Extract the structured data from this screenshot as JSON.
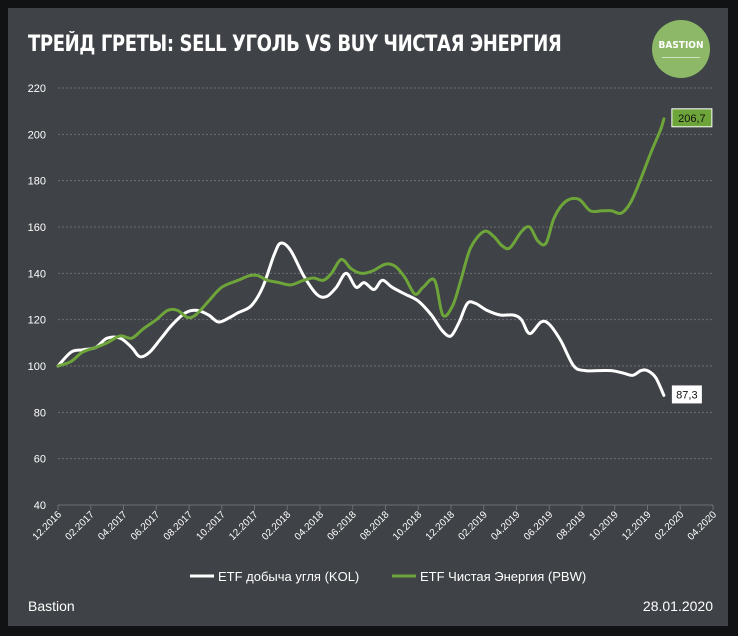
{
  "title": "ТРЕЙД ГРЕТЫ:  SELL УГОЛЬ VS BUY ЧИСТАЯ ЭНЕРГИЯ",
  "logo_text": "BASTION",
  "footer": {
    "source": "Bastion",
    "date": "28.01.2020"
  },
  "colors": {
    "panel": "#3f4246",
    "kol": "#ffffff",
    "pbw": "#6ea53a",
    "grid": "#6c6f73"
  },
  "chart_data": {
    "type": "line",
    "title": "ТРЕЙД ГРЕТЫ:  SELL УГОЛЬ VS BUY ЧИСТАЯ ЭНЕРГИЯ",
    "xlabel": "",
    "ylabel": "",
    "ylim": [
      40,
      220
    ],
    "yticks": [
      40,
      60,
      80,
      100,
      120,
      140,
      160,
      180,
      200,
      220
    ],
    "xlim": [
      0,
      40
    ],
    "xticks": [
      {
        "x": 0,
        "label": "12.2016"
      },
      {
        "x": 2,
        "label": "02.2017"
      },
      {
        "x": 4,
        "label": "04.2017"
      },
      {
        "x": 6,
        "label": "06.2017"
      },
      {
        "x": 8,
        "label": "08.2017"
      },
      {
        "x": 10,
        "label": "10.2017"
      },
      {
        "x": 12,
        "label": "12.2017"
      },
      {
        "x": 14,
        "label": "02.2018"
      },
      {
        "x": 16,
        "label": "04.2018"
      },
      {
        "x": 18,
        "label": "06.2018"
      },
      {
        "x": 20,
        "label": "08.2018"
      },
      {
        "x": 22,
        "label": "10.2018"
      },
      {
        "x": 24,
        "label": "12.2018"
      },
      {
        "x": 26,
        "label": "02.2019"
      },
      {
        "x": 28,
        "label": "04.2019"
      },
      {
        "x": 30,
        "label": "06.2019"
      },
      {
        "x": 32,
        "label": "08.2019"
      },
      {
        "x": 34,
        "label": "10.2019"
      },
      {
        "x": 36,
        "label": "12.2019"
      },
      {
        "x": 38,
        "label": "02.2020"
      },
      {
        "x": 40,
        "label": "04.2020"
      }
    ],
    "grid": true,
    "legend": "bottom-center",
    "series": [
      {
        "name": "ETF добыча угля (KOL)",
        "color": "#ffffff",
        "end_label": "87,3",
        "points": [
          [
            0,
            100
          ],
          [
            0.8,
            106
          ],
          [
            1.5,
            107
          ],
          [
            2.3,
            108
          ],
          [
            3,
            112
          ],
          [
            3.8,
            112
          ],
          [
            4.5,
            108
          ],
          [
            5,
            104
          ],
          [
            5.6,
            106
          ],
          [
            6.3,
            112
          ],
          [
            7,
            118
          ],
          [
            7.8,
            123
          ],
          [
            8.5,
            124
          ],
          [
            9.2,
            122
          ],
          [
            9.8,
            119
          ],
          [
            10.5,
            121
          ],
          [
            11,
            123
          ],
          [
            11.8,
            126
          ],
          [
            12.5,
            134
          ],
          [
            13.2,
            148
          ],
          [
            13.6,
            153
          ],
          [
            14.2,
            150
          ],
          [
            15,
            139
          ],
          [
            15.8,
            131
          ],
          [
            16.4,
            130
          ],
          [
            17,
            134
          ],
          [
            17.6,
            140
          ],
          [
            18.2,
            134
          ],
          [
            18.7,
            136
          ],
          [
            19.3,
            133
          ],
          [
            19.8,
            137
          ],
          [
            20.4,
            134
          ],
          [
            21.2,
            131
          ],
          [
            22,
            128
          ],
          [
            22.8,
            122
          ],
          [
            23.5,
            115
          ],
          [
            24,
            113
          ],
          [
            24.5,
            119
          ],
          [
            25,
            127
          ],
          [
            25.5,
            127
          ],
          [
            26.2,
            124
          ],
          [
            27,
            122
          ],
          [
            27.8,
            122
          ],
          [
            28.3,
            120
          ],
          [
            28.8,
            114
          ],
          [
            29.5,
            119
          ],
          [
            30,
            118
          ],
          [
            30.7,
            111
          ],
          [
            31.5,
            100
          ],
          [
            32.2,
            98
          ],
          [
            33,
            98
          ],
          [
            33.8,
            98
          ],
          [
            34.5,
            97
          ],
          [
            35.1,
            96
          ],
          [
            35.6,
            98
          ],
          [
            36,
            98
          ],
          [
            36.5,
            95
          ],
          [
            37,
            87.3
          ]
        ]
      },
      {
        "name": "ETF Чистая Энергия (PBW)",
        "color": "#6ea53a",
        "end_label": "206,7",
        "points": [
          [
            0,
            100
          ],
          [
            0.8,
            102
          ],
          [
            1.5,
            106
          ],
          [
            2.3,
            108
          ],
          [
            3,
            110
          ],
          [
            3.8,
            113
          ],
          [
            4.5,
            112
          ],
          [
            5.2,
            116
          ],
          [
            6,
            120
          ],
          [
            6.7,
            124
          ],
          [
            7.3,
            124
          ],
          [
            7.9,
            121
          ],
          [
            8.4,
            122
          ],
          [
            9.2,
            128
          ],
          [
            10,
            134
          ],
          [
            11,
            137
          ],
          [
            11.7,
            139
          ],
          [
            12.2,
            139
          ],
          [
            12.8,
            137
          ],
          [
            13.5,
            136
          ],
          [
            14.2,
            135
          ],
          [
            15,
            137
          ],
          [
            15.6,
            138
          ],
          [
            16.2,
            137
          ],
          [
            16.7,
            140
          ],
          [
            17.3,
            146
          ],
          [
            17.9,
            142
          ],
          [
            18.5,
            140
          ],
          [
            19.2,
            141
          ],
          [
            20,
            144
          ],
          [
            20.6,
            143
          ],
          [
            21.2,
            138
          ],
          [
            21.8,
            131
          ],
          [
            22.3,
            134
          ],
          [
            23,
            137
          ],
          [
            23.5,
            122
          ],
          [
            24.1,
            126
          ],
          [
            24.6,
            137
          ],
          [
            25.2,
            151
          ],
          [
            26,
            158
          ],
          [
            26.6,
            156
          ],
          [
            27.1,
            152
          ],
          [
            27.6,
            151
          ],
          [
            28.3,
            158
          ],
          [
            28.8,
            160
          ],
          [
            29.3,
            154
          ],
          [
            29.8,
            153
          ],
          [
            30.3,
            164
          ],
          [
            31,
            171
          ],
          [
            31.8,
            172
          ],
          [
            32.5,
            167
          ],
          [
            33.2,
            167
          ],
          [
            33.8,
            167
          ],
          [
            34.4,
            166
          ],
          [
            35,
            171
          ],
          [
            35.6,
            181
          ],
          [
            36.2,
            192
          ],
          [
            36.8,
            202
          ],
          [
            37,
            206.7
          ]
        ]
      }
    ]
  }
}
